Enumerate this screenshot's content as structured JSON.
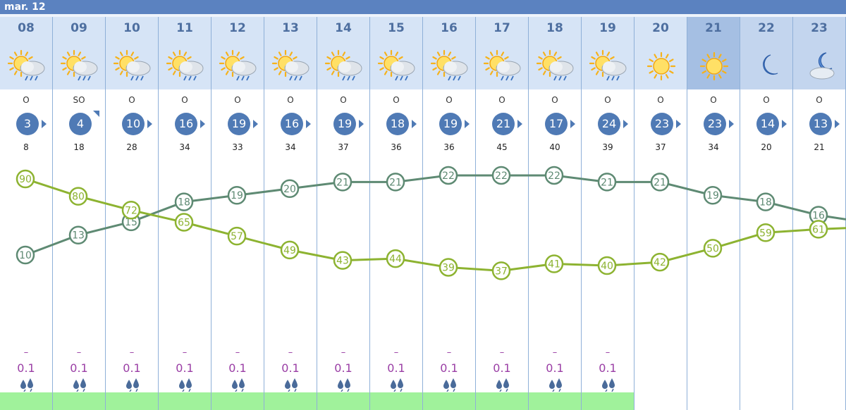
{
  "date_label": "mar. 12",
  "chart_data": {
    "type": "line",
    "x": [
      "08",
      "09",
      "10",
      "11",
      "12",
      "13",
      "14",
      "15",
      "16",
      "17",
      "18",
      "19",
      "20",
      "21",
      "22",
      "23"
    ],
    "series": [
      {
        "color": "#5e8a73",
        "values": [
          10,
          13,
          15,
          18,
          19,
          20,
          21,
          21,
          22,
          22,
          22,
          21,
          21,
          19,
          18,
          16
        ]
      },
      {
        "color": "#8db331",
        "values": [
          90,
          80,
          72,
          65,
          57,
          49,
          43,
          44,
          39,
          37,
          41,
          40,
          42,
          50,
          59,
          61
        ]
      }
    ]
  },
  "columns": [
    {
      "hour": "08",
      "icon": "sun-cloud-rain-icon",
      "head": "day",
      "wind_dir": "O",
      "wind": "3",
      "arrow": "e",
      "gust": "8",
      "dash": "–",
      "precip": "0.1"
    },
    {
      "hour": "09",
      "icon": "sun-cloud-rain-icon",
      "head": "day",
      "wind_dir": "SO",
      "wind": "4",
      "arrow": "ne",
      "gust": "18",
      "dash": "–",
      "precip": "0.1"
    },
    {
      "hour": "10",
      "icon": "sun-cloud-rain-icon",
      "head": "day",
      "wind_dir": "O",
      "wind": "10",
      "arrow": "e",
      "gust": "28",
      "dash": "–",
      "precip": "0.1"
    },
    {
      "hour": "11",
      "icon": "sun-cloud-rain-icon",
      "head": "day",
      "wind_dir": "O",
      "wind": "16",
      "arrow": "e",
      "gust": "34",
      "dash": "–",
      "precip": "0.1"
    },
    {
      "hour": "12",
      "icon": "sun-cloud-rain-icon",
      "head": "day",
      "wind_dir": "O",
      "wind": "19",
      "arrow": "e",
      "gust": "33",
      "dash": "–",
      "precip": "0.1"
    },
    {
      "hour": "13",
      "icon": "sun-cloud-rain-icon",
      "head": "day",
      "wind_dir": "O",
      "wind": "16",
      "arrow": "e",
      "gust": "34",
      "dash": "–",
      "precip": "0.1"
    },
    {
      "hour": "14",
      "icon": "sun-cloud-rain-icon",
      "head": "day",
      "wind_dir": "O",
      "wind": "19",
      "arrow": "e",
      "gust": "37",
      "dash": "–",
      "precip": "0.1"
    },
    {
      "hour": "15",
      "icon": "sun-cloud-rain-icon",
      "head": "day",
      "wind_dir": "O",
      "wind": "18",
      "arrow": "e",
      "gust": "36",
      "dash": "–",
      "precip": "0.1"
    },
    {
      "hour": "16",
      "icon": "sun-cloud-rain-icon",
      "head": "day",
      "wind_dir": "O",
      "wind": "19",
      "arrow": "e",
      "gust": "36",
      "dash": "–",
      "precip": "0.1"
    },
    {
      "hour": "17",
      "icon": "sun-cloud-rain-icon",
      "head": "day",
      "wind_dir": "O",
      "wind": "21",
      "arrow": "e",
      "gust": "45",
      "dash": "–",
      "precip": "0.1"
    },
    {
      "hour": "18",
      "icon": "sun-cloud-rain-icon",
      "head": "day",
      "wind_dir": "O",
      "wind": "17",
      "arrow": "e",
      "gust": "40",
      "dash": "–",
      "precip": "0.1"
    },
    {
      "hour": "19",
      "icon": "sun-cloud-rain-icon",
      "head": "day",
      "wind_dir": "O",
      "wind": "24",
      "arrow": "e",
      "gust": "39",
      "dash": "–",
      "precip": "0.1"
    },
    {
      "hour": "20",
      "icon": "sun-icon",
      "head": "day",
      "wind_dir": "O",
      "wind": "23",
      "arrow": "e",
      "gust": "37",
      "dash": "",
      "precip": ""
    },
    {
      "hour": "21",
      "icon": "sun-icon",
      "head": "hl",
      "wind_dir": "O",
      "wind": "23",
      "arrow": "e",
      "gust": "34",
      "dash": "",
      "precip": ""
    },
    {
      "hour": "22",
      "icon": "moon-icon",
      "head": "night",
      "wind_dir": "O",
      "wind": "14",
      "arrow": "e",
      "gust": "20",
      "dash": "",
      "precip": ""
    },
    {
      "hour": "23",
      "icon": "moon-cloud-icon",
      "head": "night",
      "wind_dir": "O",
      "wind": "13",
      "arrow": "e",
      "gust": "21",
      "dash": "",
      "precip": ""
    }
  ]
}
